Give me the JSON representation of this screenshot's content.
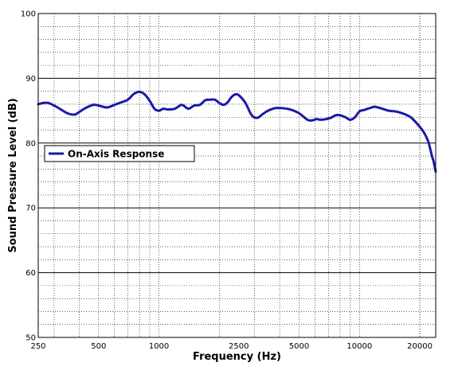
{
  "chart_data": {
    "type": "line",
    "xlabel": "Frequency (Hz)",
    "ylabel": "Sound Pressure Level (dB)",
    "xscale": "log",
    "xlim": [
      250,
      24000
    ],
    "ylim": [
      50,
      100
    ],
    "grid": true,
    "legend_placement": "left",
    "x_ticks": [
      250,
      500,
      1000,
      2500,
      5000,
      10000,
      20000
    ],
    "x_tick_labels": [
      "250",
      "500",
      "1000",
      "2500",
      "5000",
      "10000",
      "20000"
    ],
    "y_ticks": [
      50,
      60,
      70,
      80,
      90,
      100
    ],
    "y_tick_labels": [
      "50",
      "60",
      "70",
      "80",
      "90",
      "100"
    ],
    "series": [
      {
        "name": "On-Axis Response",
        "color": "#1a1aa8",
        "x": [
          250,
          265,
          280,
          300,
          320,
          350,
          380,
          400,
          430,
          470,
          500,
          550,
          600,
          650,
          700,
          750,
          800,
          850,
          900,
          950,
          1000,
          1050,
          1100,
          1200,
          1300,
          1400,
          1500,
          1600,
          1700,
          1800,
          1900,
          2000,
          2100,
          2200,
          2300,
          2400,
          2500,
          2700,
          2900,
          3100,
          3300,
          3500,
          3800,
          4100,
          4500,
          5000,
          5500,
          5800,
          6100,
          6400,
          6800,
          7200,
          7600,
          8000,
          8500,
          9000,
          9500,
          10000,
          10500,
          11000,
          11500,
          12000,
          13000,
          14000,
          15000,
          16000,
          17000,
          18000,
          19000,
          20000,
          21000,
          22000,
          22500,
          23000,
          23500,
          24000
        ],
        "values": [
          86.0,
          86.2,
          86.2,
          85.8,
          85.3,
          84.6,
          84.4,
          84.8,
          85.4,
          85.9,
          85.8,
          85.5,
          85.9,
          86.3,
          86.7,
          87.6,
          87.9,
          87.5,
          86.5,
          85.3,
          85.0,
          85.3,
          85.2,
          85.3,
          85.9,
          85.3,
          85.8,
          85.9,
          86.6,
          86.7,
          86.7,
          86.2,
          85.9,
          86.3,
          87.1,
          87.5,
          87.4,
          86.2,
          84.3,
          83.9,
          84.5,
          85.0,
          85.4,
          85.4,
          85.2,
          84.6,
          83.6,
          83.5,
          83.7,
          83.6,
          83.7,
          83.9,
          84.3,
          84.3,
          84.0,
          83.6,
          84.0,
          84.9,
          85.1,
          85.3,
          85.5,
          85.6,
          85.3,
          85.0,
          84.9,
          84.7,
          84.4,
          84.0,
          83.3,
          82.5,
          81.6,
          80.3,
          79.2,
          78.0,
          77.0,
          75.6
        ]
      }
    ]
  }
}
